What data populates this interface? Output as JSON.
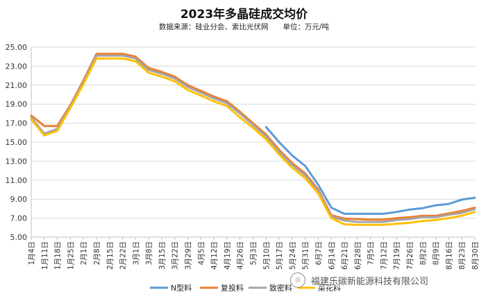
{
  "chart_data": {
    "type": "line",
    "title": "2023年多晶硅成交均价",
    "subtitle": "数据来源：硅业分会、索比光伏网　　单位：万元/吨",
    "xlabel": "",
    "ylabel": "",
    "ylim": [
      5,
      25
    ],
    "yticks": [
      "5.00",
      "7.00",
      "9.00",
      "11.00",
      "13.00",
      "15.00",
      "17.00",
      "19.00",
      "21.00",
      "23.00",
      "25.00"
    ],
    "grid": true,
    "legend_position": "bottom-center",
    "categories": [
      "1月4日",
      "1月11日",
      "1月18日",
      "1月25日",
      "2月1日",
      "2月8日",
      "2月15日",
      "2月22日",
      "3月1日",
      "3月8日",
      "3月15日",
      "3月22日",
      "3月29日",
      "4月5日",
      "4月12日",
      "4月19日",
      "4月26日",
      "5月3日",
      "5月10日",
      "5月17日",
      "5月24日",
      "5月31日",
      "6月7日",
      "6月14日",
      "6月21日",
      "6月28日",
      "7月5日",
      "7月12日",
      "7月19日",
      "7月26日",
      "8月2日",
      "8月9日",
      "8月16日",
      "8月23日",
      "8月30日"
    ],
    "series": [
      {
        "name": "N型料",
        "color": "#5B9BD5",
        "values": [
          null,
          null,
          null,
          null,
          null,
          null,
          null,
          null,
          null,
          null,
          null,
          null,
          null,
          null,
          null,
          null,
          null,
          null,
          16.6,
          15.0,
          13.6,
          12.5,
          10.5,
          8.1,
          7.45,
          7.45,
          7.45,
          7.45,
          7.65,
          7.9,
          8.05,
          8.35,
          8.5,
          8.95,
          9.15
        ]
      },
      {
        "name": "复投料",
        "color": "#ED7D31",
        "values": [
          17.8,
          16.7,
          16.7,
          18.9,
          21.5,
          24.3,
          24.3,
          24.3,
          24.0,
          22.8,
          22.4,
          21.9,
          21.0,
          20.4,
          19.8,
          19.3,
          18.2,
          17.0,
          15.8,
          14.2,
          12.8,
          11.7,
          10.0,
          7.3,
          6.95,
          6.9,
          6.85,
          6.85,
          7.0,
          7.1,
          7.25,
          7.25,
          7.5,
          7.75,
          8.1
        ]
      },
      {
        "name": "致密料",
        "color": "#A5A5A5",
        "values": [
          17.6,
          15.9,
          16.4,
          18.8,
          21.3,
          24.1,
          24.1,
          24.1,
          23.8,
          22.6,
          22.2,
          21.7,
          20.8,
          20.2,
          19.6,
          19.1,
          18.0,
          16.8,
          15.6,
          14.0,
          12.6,
          11.5,
          9.8,
          7.15,
          6.75,
          6.6,
          6.6,
          6.6,
          6.8,
          6.9,
          7.1,
          7.1,
          7.35,
          7.55,
          7.95
        ]
      },
      {
        "name": "菜花料",
        "color": "#FFC000",
        "values": [
          17.4,
          15.7,
          16.2,
          18.6,
          21.1,
          23.8,
          23.8,
          23.8,
          23.5,
          22.3,
          21.9,
          21.4,
          20.5,
          19.9,
          19.3,
          18.8,
          17.6,
          16.5,
          15.3,
          13.7,
          12.3,
          11.2,
          9.6,
          7.0,
          6.35,
          6.3,
          6.3,
          6.3,
          6.4,
          6.5,
          6.7,
          6.8,
          7.0,
          7.25,
          7.65
        ]
      }
    ]
  },
  "watermark": {
    "text": "福建乐碳新能源科技有限公司",
    "icon": "wechat-official-account-icon"
  }
}
